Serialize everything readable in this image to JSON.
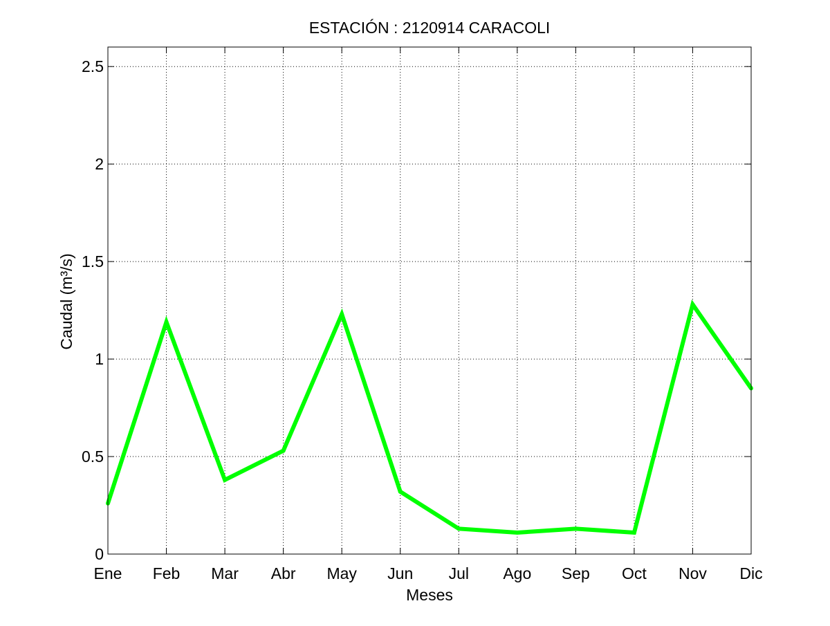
{
  "chart_data": {
    "type": "line",
    "title": "ESTACIÓN :  2120914  CARACOLI",
    "xlabel": "Meses",
    "ylabel": "Caudal (m³/s)",
    "categories": [
      "Ene",
      "Feb",
      "Mar",
      "Abr",
      "May",
      "Jun",
      "Jul",
      "Ago",
      "Sep",
      "Oct",
      "Nov",
      "Dic"
    ],
    "series": [
      {
        "values": [
          0.26,
          1.19,
          0.38,
          0.53,
          1.23,
          0.32,
          0.13,
          0.11,
          0.13,
          0.11,
          1.28,
          0.85
        ],
        "color": "#00ff00"
      }
    ],
    "ylim": [
      0,
      2.6
    ],
    "yticks": [
      0,
      0.5,
      1,
      1.5,
      2,
      2.5
    ],
    "ytick_labels": [
      "0",
      "0.5",
      "1",
      "1.5",
      "2",
      "2.5"
    ],
    "grid": true,
    "legend": "none",
    "colors": {
      "axes": "#000000",
      "grid": "#000000",
      "background": "#ffffff"
    }
  }
}
